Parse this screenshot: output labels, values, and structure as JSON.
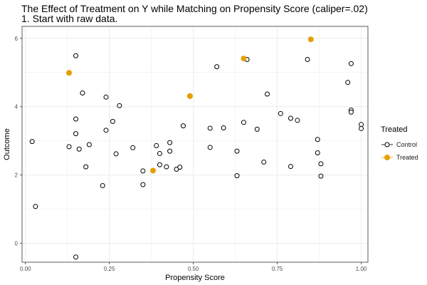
{
  "chart_data": {
    "type": "scatter",
    "title": "The Effect of Treatment on Y while Matching on Propensity Score (caliper=.02)",
    "subtitle": "1. Start with raw data.",
    "xlabel": "Propensity Score",
    "ylabel": "Outcome",
    "xlim": [
      -0.01,
      1.02
    ],
    "ylim": [
      -0.55,
      6.35
    ],
    "x_ticks": [
      0.0,
      0.25,
      0.5,
      0.75,
      1.0
    ],
    "x_tick_labels": [
      "0.00",
      "0.25",
      "0.50",
      "0.75",
      "1.00"
    ],
    "y_ticks": [
      0,
      2,
      4,
      6
    ],
    "y_tick_labels": [
      "0",
      "2",
      "4",
      "6"
    ],
    "grid": true,
    "legend": {
      "title": "Treated",
      "placement": "right",
      "entries": [
        "Control",
        "Treated"
      ]
    },
    "colors": {
      "control": "#000000",
      "treated": "#E69F00",
      "grid": "#EBEBEB",
      "panel_border": "#333333"
    },
    "series": [
      {
        "name": "Control",
        "points": [
          {
            "x": 0.02,
            "y": 2.98
          },
          {
            "x": 0.03,
            "y": 1.08
          },
          {
            "x": 0.13,
            "y": 2.83
          },
          {
            "x": 0.15,
            "y": 5.49
          },
          {
            "x": 0.15,
            "y": 3.64
          },
          {
            "x": 0.15,
            "y": 3.21
          },
          {
            "x": 0.16,
            "y": 2.76
          },
          {
            "x": 0.17,
            "y": 4.4
          },
          {
            "x": 0.18,
            "y": 2.24
          },
          {
            "x": 0.19,
            "y": 2.89
          },
          {
            "x": 0.15,
            "y": -0.4
          },
          {
            "x": 0.23,
            "y": 1.69
          },
          {
            "x": 0.24,
            "y": 4.28
          },
          {
            "x": 0.24,
            "y": 3.31
          },
          {
            "x": 0.26,
            "y": 3.57
          },
          {
            "x": 0.27,
            "y": 2.62
          },
          {
            "x": 0.28,
            "y": 4.03
          },
          {
            "x": 0.32,
            "y": 2.8
          },
          {
            "x": 0.35,
            "y": 2.12
          },
          {
            "x": 0.35,
            "y": 1.72
          },
          {
            "x": 0.39,
            "y": 2.86
          },
          {
            "x": 0.4,
            "y": 2.3
          },
          {
            "x": 0.4,
            "y": 2.63
          },
          {
            "x": 0.42,
            "y": 2.24
          },
          {
            "x": 0.43,
            "y": 2.95
          },
          {
            "x": 0.43,
            "y": 2.7
          },
          {
            "x": 0.45,
            "y": 2.17
          },
          {
            "x": 0.46,
            "y": 2.23
          },
          {
            "x": 0.47,
            "y": 3.44
          },
          {
            "x": 0.55,
            "y": 3.37
          },
          {
            "x": 0.55,
            "y": 2.81
          },
          {
            "x": 0.57,
            "y": 5.17
          },
          {
            "x": 0.59,
            "y": 3.38
          },
          {
            "x": 0.63,
            "y": 2.7
          },
          {
            "x": 0.63,
            "y": 1.98
          },
          {
            "x": 0.65,
            "y": 3.54
          },
          {
            "x": 0.66,
            "y": 5.38
          },
          {
            "x": 0.69,
            "y": 3.34
          },
          {
            "x": 0.71,
            "y": 2.38
          },
          {
            "x": 0.72,
            "y": 4.37
          },
          {
            "x": 0.76,
            "y": 3.8
          },
          {
            "x": 0.79,
            "y": 3.66
          },
          {
            "x": 0.79,
            "y": 2.25
          },
          {
            "x": 0.81,
            "y": 3.6
          },
          {
            "x": 0.84,
            "y": 5.38
          },
          {
            "x": 0.87,
            "y": 2.65
          },
          {
            "x": 0.87,
            "y": 3.04
          },
          {
            "x": 0.88,
            "y": 2.33
          },
          {
            "x": 0.88,
            "y": 1.97
          },
          {
            "x": 0.96,
            "y": 4.71
          },
          {
            "x": 0.97,
            "y": 5.26
          },
          {
            "x": 0.97,
            "y": 3.9
          },
          {
            "x": 0.97,
            "y": 3.84
          },
          {
            "x": 1.0,
            "y": 3.48
          },
          {
            "x": 1.0,
            "y": 3.36
          }
        ]
      },
      {
        "name": "Treated",
        "points": [
          {
            "x": 0.13,
            "y": 4.99
          },
          {
            "x": 0.38,
            "y": 2.13
          },
          {
            "x": 0.49,
            "y": 4.31
          },
          {
            "x": 0.65,
            "y": 5.41
          },
          {
            "x": 0.85,
            "y": 5.97
          }
        ]
      }
    ]
  }
}
